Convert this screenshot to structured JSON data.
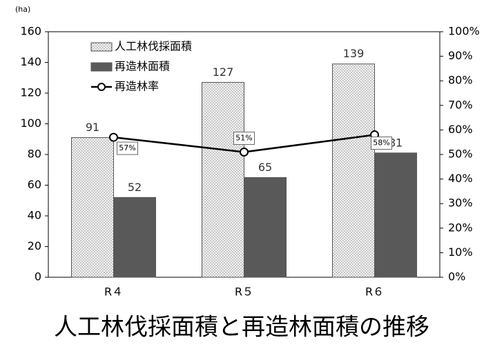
{
  "chart_data": {
    "type": "bar",
    "title": "人工林伐採面積と再造林面積の推移",
    "y_label": "(ha)",
    "categories": [
      "R４",
      "R５",
      "R６"
    ],
    "series": [
      {
        "name": "人工林伐採面積",
        "color": "#f4f4f4",
        "values": [
          91,
          127,
          139
        ]
      },
      {
        "name": "再造林面積",
        "color": "#595959",
        "values": [
          52,
          65,
          81
        ]
      },
      {
        "name": "再造林率",
        "type": "line",
        "axis": "y2",
        "color": "#000000",
        "values": [
          57,
          51,
          58
        ],
        "value_labels": [
          "57%",
          "51%",
          "58%"
        ]
      }
    ],
    "ylim": [
      0,
      160
    ],
    "yticks": [
      0,
      20,
      40,
      60,
      80,
      100,
      120,
      140,
      160
    ],
    "y2lim": [
      0,
      100
    ],
    "y2ticks": [
      {
        "value": 0,
        "label": "0%"
      },
      {
        "value": 10,
        "label": "10%"
      },
      {
        "value": 20,
        "label": "20%"
      },
      {
        "value": 30,
        "label": "30%"
      },
      {
        "value": 40,
        "label": "40%"
      },
      {
        "value": 50,
        "label": "50%"
      },
      {
        "value": 60,
        "label": "60%"
      },
      {
        "value": 70,
        "label": "70%"
      },
      {
        "value": 80,
        "label": "80%"
      },
      {
        "value": 90,
        "label": "90%"
      },
      {
        "value": 100,
        "label": "100%"
      }
    ],
    "grid": false,
    "legend": "upper left"
  }
}
